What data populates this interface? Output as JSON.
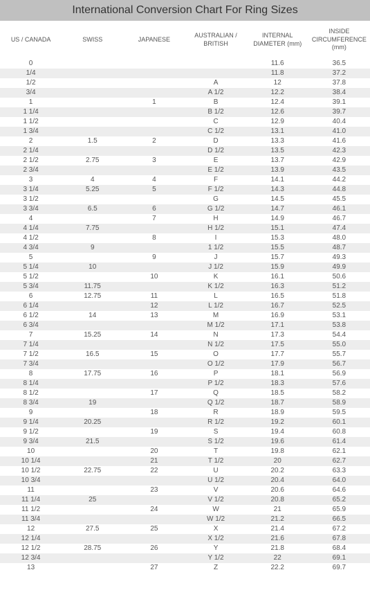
{
  "title": "International Conversion Chart For Ring Sizes",
  "columns": [
    "US / CANADA",
    "SWISS",
    "JAPANESE",
    "AUSTRALIAN / BRITISH",
    "INTERNAL DIAMETER (mm)",
    "INSIDE CIRCUMFERENCE (mm)"
  ],
  "rows": [
    [
      "0",
      "",
      "",
      "",
      "11.6",
      "36.5"
    ],
    [
      "1/4",
      "",
      "",
      "",
      "11.8",
      "37.2"
    ],
    [
      "1/2",
      "",
      "",
      "A",
      "12",
      "37.8"
    ],
    [
      "3/4",
      "",
      "",
      "A 1/2",
      "12.2",
      "38.4"
    ],
    [
      "1",
      "",
      "1",
      "B",
      "12.4",
      "39.1"
    ],
    [
      "1 1/4",
      "",
      "",
      "B 1/2",
      "12.6",
      "39.7"
    ],
    [
      "1 1/2",
      "",
      "",
      "C",
      "12.9",
      "40.4"
    ],
    [
      "1 3/4",
      "",
      "",
      "C 1/2",
      "13.1",
      "41.0"
    ],
    [
      "2",
      "1.5",
      "2",
      "D",
      "13.3",
      "41.6"
    ],
    [
      "2 1/4",
      "",
      "",
      "D 1/2",
      "13.5",
      "42.3"
    ],
    [
      "2 1/2",
      "2.75",
      "3",
      "E",
      "13.7",
      "42.9"
    ],
    [
      "2 3/4",
      "",
      "",
      "E 1/2",
      "13.9",
      "43.5"
    ],
    [
      "3",
      "4",
      "4",
      "F",
      "14.1",
      "44.2"
    ],
    [
      "3 1/4",
      "5.25",
      "5",
      "F 1/2",
      "14.3",
      "44.8"
    ],
    [
      "3 1/2",
      "",
      "",
      "G",
      "14.5",
      "45.5"
    ],
    [
      "3 3/4",
      "6.5",
      "6",
      "G 1/2",
      "14.7",
      "46.1"
    ],
    [
      "4",
      "",
      "7",
      "H",
      "14.9",
      "46.7"
    ],
    [
      "4 1/4",
      "7.75",
      "",
      "H 1/2",
      "15.1",
      "47.4"
    ],
    [
      "4 1/2",
      "",
      "8",
      "I",
      "15.3",
      "48.0"
    ],
    [
      "4 3/4",
      "9",
      "",
      "1 1/2",
      "15.5",
      "48.7"
    ],
    [
      "5",
      "",
      "9",
      "J",
      "15.7",
      "49.3"
    ],
    [
      "5 1/4",
      "10",
      "",
      "J 1/2",
      "15.9",
      "49.9"
    ],
    [
      "5 1/2",
      "",
      "10",
      "K",
      "16.1",
      "50.6"
    ],
    [
      "5 3/4",
      "11.75",
      "",
      "K 1/2",
      "16.3",
      "51.2"
    ],
    [
      "6",
      "12.75",
      "11",
      "L",
      "16.5",
      "51.8"
    ],
    [
      "6 1/4",
      "",
      "12",
      "L 1/2",
      "16.7",
      "52.5"
    ],
    [
      "6 1/2",
      "14",
      "13",
      "M",
      "16.9",
      "53.1"
    ],
    [
      "6 3/4",
      "",
      "",
      "M 1/2",
      "17.1",
      "53.8"
    ],
    [
      "7",
      "15.25",
      "14",
      "N",
      "17.3",
      "54.4"
    ],
    [
      "7 1/4",
      "",
      "",
      "N 1/2",
      "17.5",
      "55.0"
    ],
    [
      "7 1/2",
      "16.5",
      "15",
      "O",
      "17.7",
      "55.7"
    ],
    [
      "7 3/4",
      "",
      "",
      "O 1/2",
      "17.9",
      "56.7"
    ],
    [
      "8",
      "17.75",
      "16",
      "P",
      "18.1",
      "56.9"
    ],
    [
      "8 1/4",
      "",
      "",
      "P 1/2",
      "18.3",
      "57.6"
    ],
    [
      "8 1/2",
      "",
      "17",
      "Q",
      "18.5",
      "58.2"
    ],
    [
      "8 3/4",
      "19",
      "",
      "Q 1/2",
      "18.7",
      "58.9"
    ],
    [
      "9",
      "",
      "18",
      "R",
      "18.9",
      "59.5"
    ],
    [
      "9 1/4",
      "20.25",
      "",
      "R 1/2",
      "19.2",
      "60.1"
    ],
    [
      "9 1/2",
      "",
      "19",
      "S",
      "19.4",
      "60.8"
    ],
    [
      "9 3/4",
      "21.5",
      "",
      "S 1/2",
      "19.6",
      "61.4"
    ],
    [
      "10",
      "",
      "20",
      "T",
      "19.8",
      "62.1"
    ],
    [
      "10 1/4",
      "",
      "21",
      "T 1/2",
      "20",
      "62.7"
    ],
    [
      "10 1/2",
      "22.75",
      "22",
      "U",
      "20.2",
      "63.3"
    ],
    [
      "10 3/4",
      "",
      "",
      "U 1/2",
      "20.4",
      "64.0"
    ],
    [
      "11",
      "",
      "23",
      "V",
      "20.6",
      "64.6"
    ],
    [
      "11 1/4",
      "25",
      "",
      "V 1/2",
      "20.8",
      "65.2"
    ],
    [
      "11 1/2",
      "",
      "24",
      "W",
      "21",
      "65.9"
    ],
    [
      "11 3/4",
      "",
      "",
      "W 1/2",
      "21.2",
      "66.5"
    ],
    [
      "12",
      "27.5",
      "25",
      "X",
      "21.4",
      "67.2"
    ],
    [
      "12 1/4",
      "",
      "",
      "X 1/2",
      "21.6",
      "67.8"
    ],
    [
      "12 1/2",
      "28.75",
      "26",
      "Y",
      "21.8",
      "68.4"
    ],
    [
      "12 3/4",
      "",
      "",
      "Y 1/2",
      "22",
      "69.1"
    ],
    [
      "13",
      "",
      "27",
      "Z",
      "22.2",
      "69.7"
    ]
  ]
}
